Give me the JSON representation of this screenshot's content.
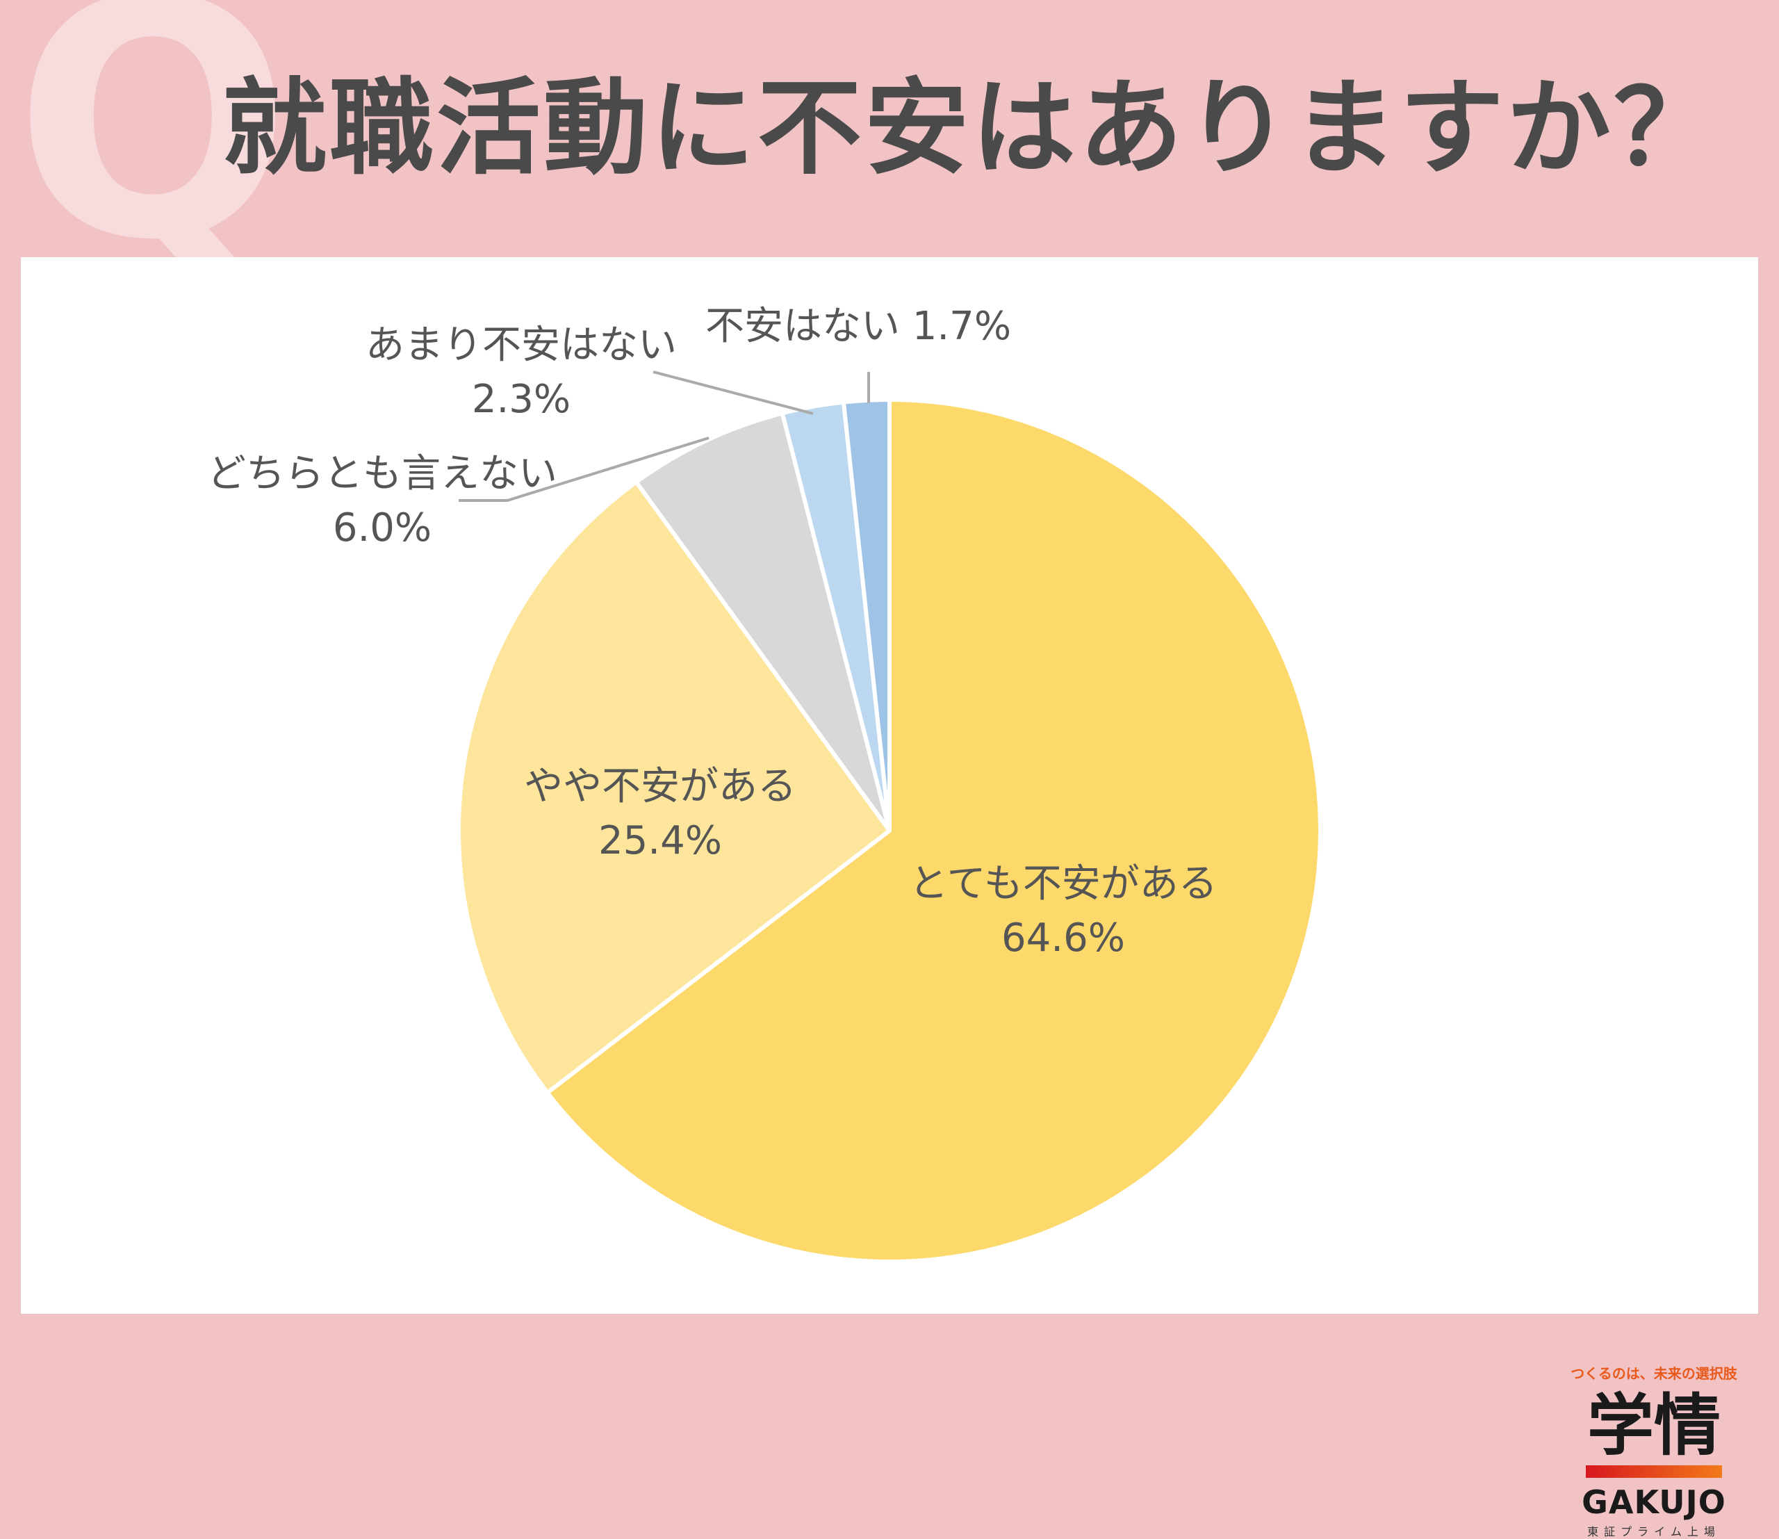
{
  "header": {
    "q_mark": "Q",
    "title": "就職活動に不安はありますか？"
  },
  "chart_data": {
    "type": "pie",
    "start_angle": "12 o'clock, clockwise",
    "slices": [
      {
        "label": "とても不安がある",
        "value": 64.6,
        "value_text": "64.6%",
        "color": "#fdd96b"
      },
      {
        "label": "やや不安がある",
        "value": 25.4,
        "value_text": "25.4%",
        "color": "#fee59c"
      },
      {
        "label": "どちらとも言えない",
        "value": 6.0,
        "value_text": "6.0%",
        "color": "#d8d8d8"
      },
      {
        "label": "あまり不安はない",
        "value": 2.3,
        "value_text": "2.3%",
        "color": "#bcd8f0"
      },
      {
        "label": "不安はない",
        "value": 1.7,
        "value_text": "1.7%",
        "color": "#9ec3e6"
      }
    ],
    "label_color": "#555555",
    "leader_line_color": "#aaaaaa"
  },
  "brand": {
    "tagline": "つくるのは、未来の選択肢",
    "name": "学情",
    "name_en": "GAKUJO",
    "sub": "東証プライム上場"
  }
}
